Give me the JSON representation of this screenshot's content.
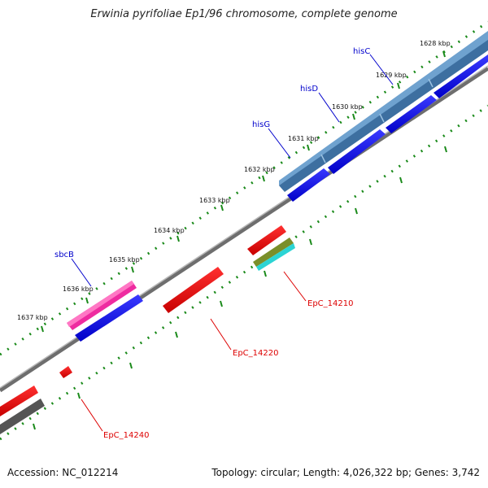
{
  "title": "Erwinia pyrifoliae Ep1/96 chromosome, complete genome",
  "footer": {
    "accession": "Accession: NC_012214",
    "summary": "Topology: circular; Length: 4,026,322 bp; Genes: 3,742"
  },
  "ruler": {
    "unit": "kbp",
    "labels": [
      "1628 kbp",
      "1629 kbp",
      "1630 kbp",
      "1631 kbp",
      "1632 kbp",
      "1633 kbp",
      "1634 kbp",
      "1635 kbp",
      "1636 kbp",
      "1637 kbp"
    ]
  },
  "genes": {
    "hisC": "hisC",
    "hisD": "hisD",
    "hisG": "hisG",
    "sbcB": "sbcB",
    "EpC_14210": "EpC_14210",
    "EpC_14220": "EpC_14220",
    "EpC_14240": "EpC_14240"
  },
  "colors": {
    "forward_gene": "#0000ee",
    "reverse_gene": "#ee0000",
    "operon": "#4a7fb0",
    "pink_feature": "#ee2ba0",
    "backbone": "#888888",
    "tick": "#1a8a1a",
    "gene_label_blue": "#0000cc",
    "gene_label_red": "#dd0000"
  }
}
